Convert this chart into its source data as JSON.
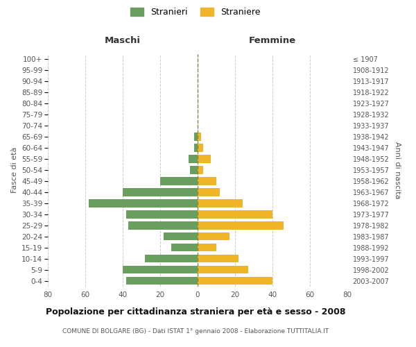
{
  "age_groups": [
    "0-4",
    "5-9",
    "10-14",
    "15-19",
    "20-24",
    "25-29",
    "30-34",
    "35-39",
    "40-44",
    "45-49",
    "50-54",
    "55-59",
    "60-64",
    "65-69",
    "70-74",
    "75-79",
    "80-84",
    "85-89",
    "90-94",
    "95-99",
    "100+"
  ],
  "birth_years": [
    "2003-2007",
    "1998-2002",
    "1993-1997",
    "1988-1992",
    "1983-1987",
    "1978-1982",
    "1973-1977",
    "1968-1972",
    "1963-1967",
    "1958-1962",
    "1953-1957",
    "1948-1952",
    "1943-1947",
    "1938-1942",
    "1933-1937",
    "1928-1932",
    "1923-1927",
    "1918-1922",
    "1913-1917",
    "1908-1912",
    "≤ 1907"
  ],
  "males": [
    38,
    40,
    28,
    14,
    18,
    37,
    38,
    58,
    40,
    20,
    4,
    5,
    2,
    2,
    0,
    0,
    0,
    0,
    0,
    0,
    0
  ],
  "females": [
    40,
    27,
    22,
    10,
    17,
    46,
    40,
    24,
    12,
    10,
    3,
    7,
    3,
    2,
    0,
    0,
    0,
    0,
    0,
    0,
    0
  ],
  "male_color": "#6a9e5f",
  "female_color": "#f0b429",
  "center_line_color": "#888844",
  "grid_color": "#cccccc",
  "background_color": "#ffffff",
  "title": "Popolazione per cittadinanza straniera per età e sesso - 2008",
  "subtitle": "COMUNE DI BOLGARE (BG) - Dati ISTAT 1° gennaio 2008 - Elaborazione TUTTITALIA.IT",
  "xlabel_left": "Maschi",
  "xlabel_right": "Femmine",
  "ylabel_left": "Fasce di età",
  "ylabel_right": "Anni di nascita",
  "xlim": 80,
  "legend_stranieri": "Stranieri",
  "legend_straniere": "Straniere"
}
